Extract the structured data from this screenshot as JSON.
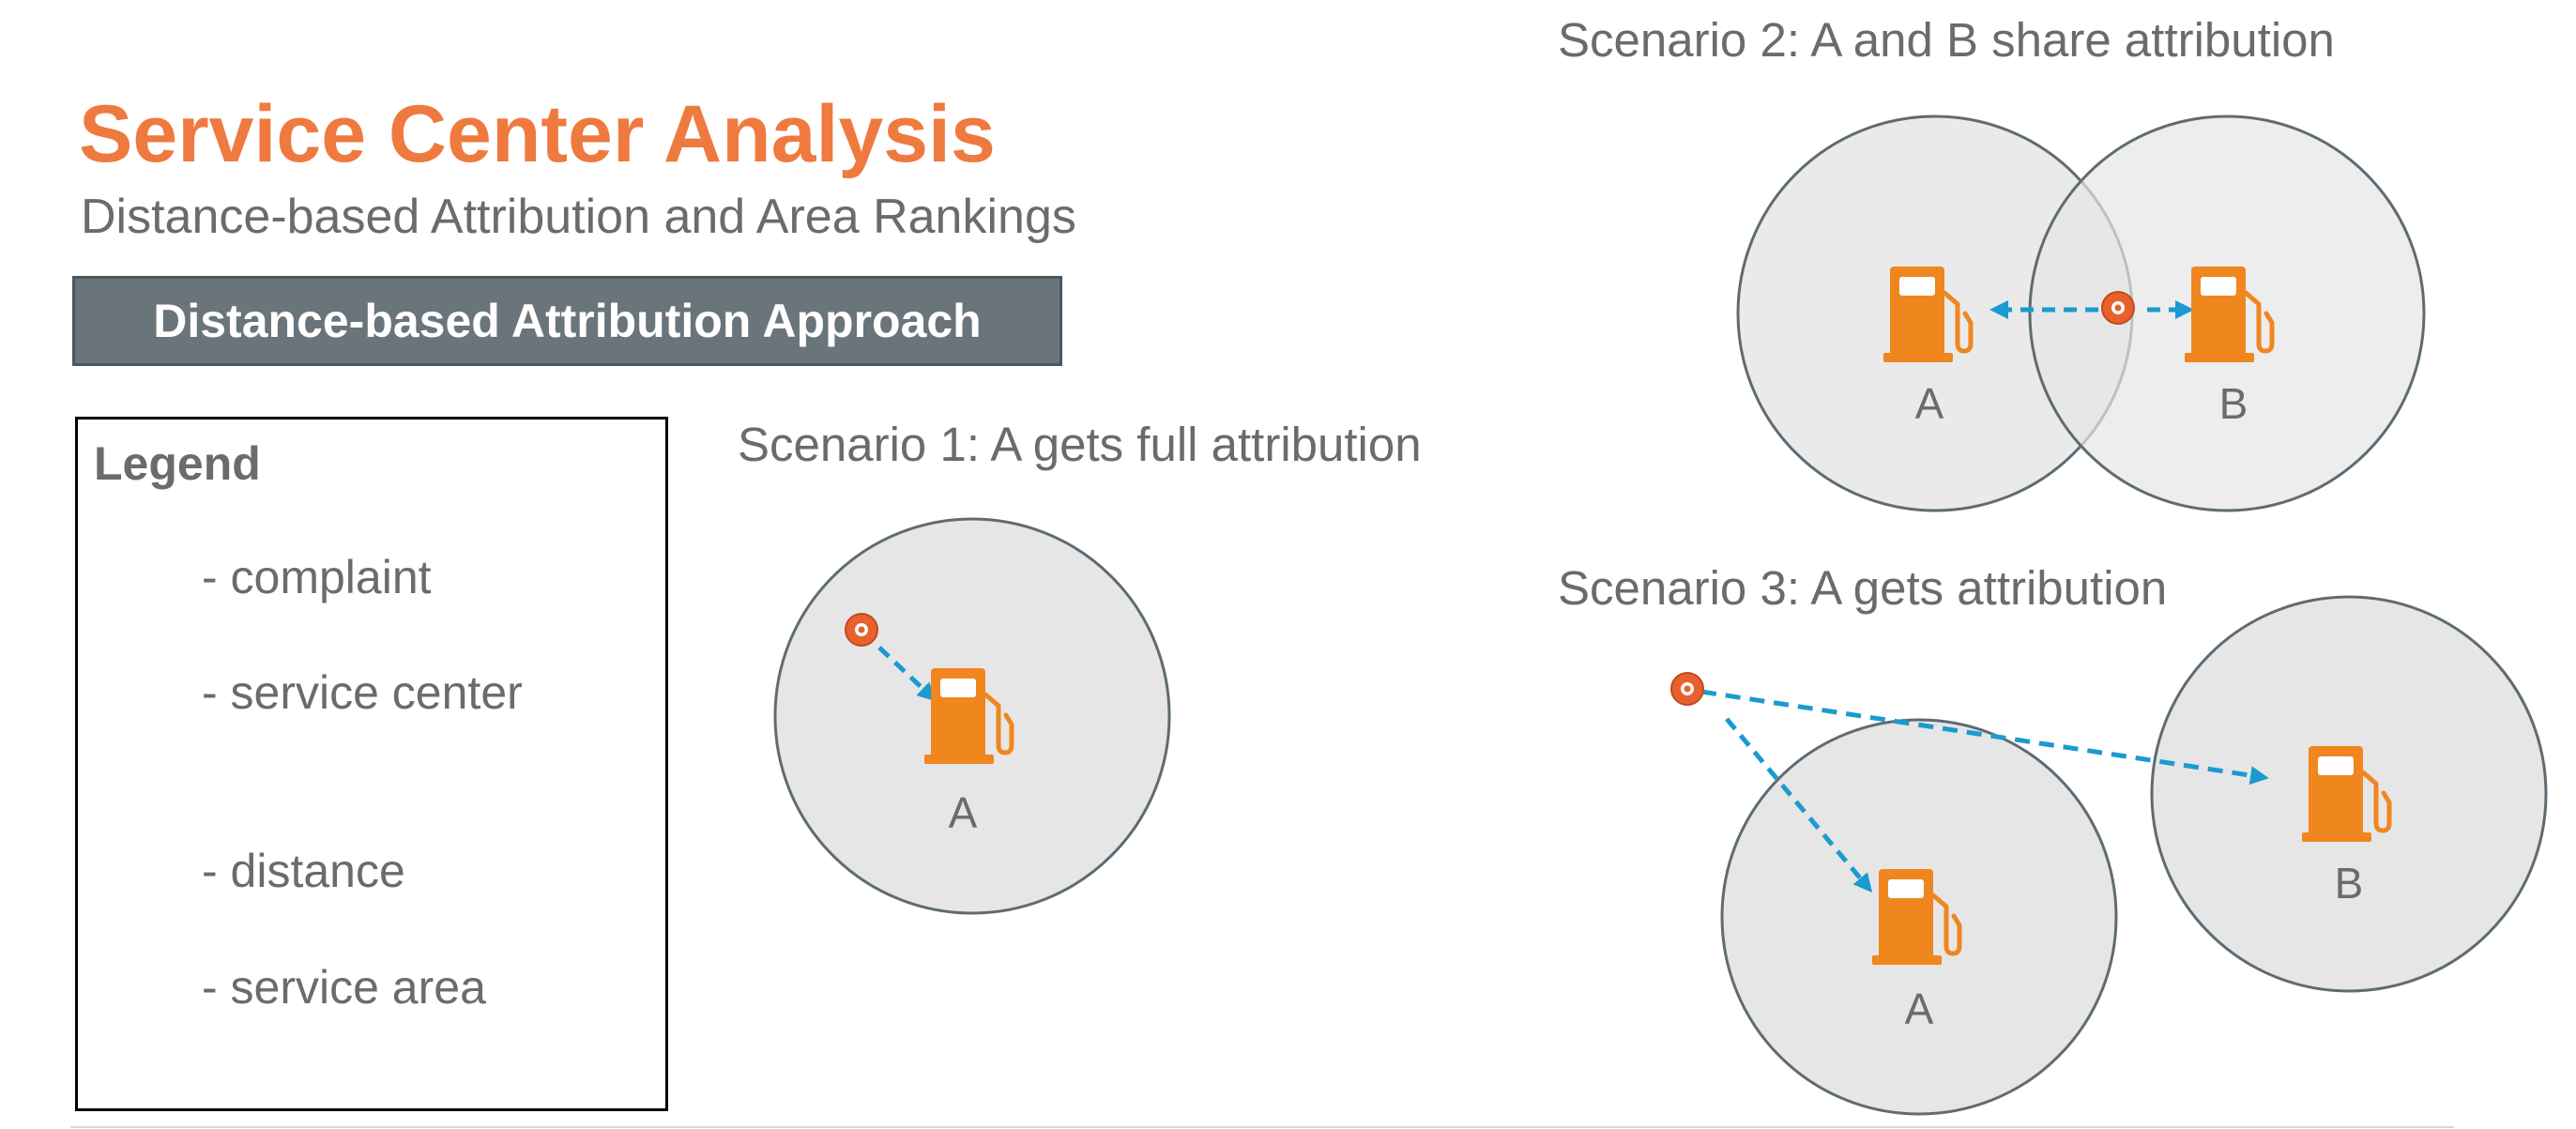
{
  "header": {
    "title": "Service Center Analysis",
    "subtitle": "Distance-based Attribution and Area Rankings",
    "approach_label": "Distance-based Attribution Approach"
  },
  "legend": {
    "title": "Legend",
    "items": [
      {
        "icon": "complaint-icon",
        "label": "- complaint"
      },
      {
        "icon": "service-center-icon",
        "label": "- service center"
      },
      {
        "icon": "distance-arrow-icon",
        "label": "- distance"
      },
      {
        "icon": "service-area-icon",
        "label": "- service area"
      }
    ]
  },
  "scenarios": [
    {
      "label": "Scenario 1: A gets full attribution",
      "centers": [
        "A"
      ]
    },
    {
      "label": "Scenario 2: A and B share attribution",
      "centers": [
        "A",
        "B"
      ]
    },
    {
      "label": "Scenario 3: A gets attribution",
      "centers": [
        "A",
        "B"
      ]
    }
  ],
  "colors": {
    "title": "#ef7a3f",
    "pump": "#f0861e",
    "complaint": "#e8612c",
    "arrow": "#1a9ad0",
    "area_fill": "#e6e6e6",
    "area_stroke": "#5f6b73",
    "text": "#6b6b6b",
    "box": "#6a747b"
  }
}
